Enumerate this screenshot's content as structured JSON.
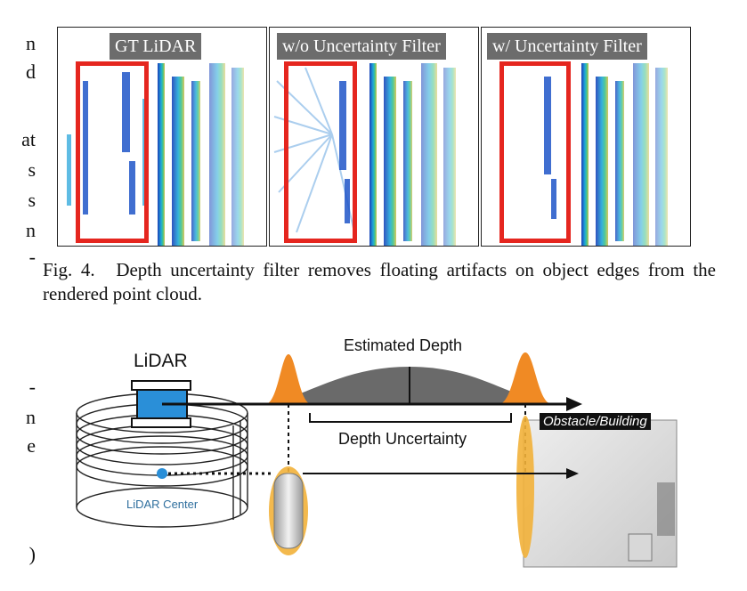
{
  "page_left_margin_fragments": [
    "n",
    "d",
    "at",
    "s",
    "s",
    "n",
    "-",
    "-",
    "n",
    "e",
    ")"
  ],
  "figure4": {
    "panels": [
      {
        "label": "GT LiDAR"
      },
      {
        "label": "w/o Uncertainty Filter"
      },
      {
        "label": "w/ Uncertainty Filter"
      }
    ],
    "caption_number": "Fig. 4.",
    "caption_text": "Depth uncertainty filter removes floating artifacts on object edges from the rendered point cloud.",
    "colors": {
      "highlight_box": "#e5261f",
      "label_bg": "#6c6c6c"
    }
  },
  "figure5": {
    "lidar_label": "LiDAR",
    "estimated_depth_label": "Estimated Depth",
    "depth_uncertainty_label": "Depth Uncertainty",
    "obstacle_label": "Obstacle/Building",
    "lidar_center_label": "LiDAR Center",
    "colors": {
      "peak": "#f08a24",
      "distribution": "#6a6a6a",
      "lidar_body": "#2a8fd8",
      "center_dot": "#2a8fd8",
      "center_label": "#2f6f9e"
    }
  }
}
